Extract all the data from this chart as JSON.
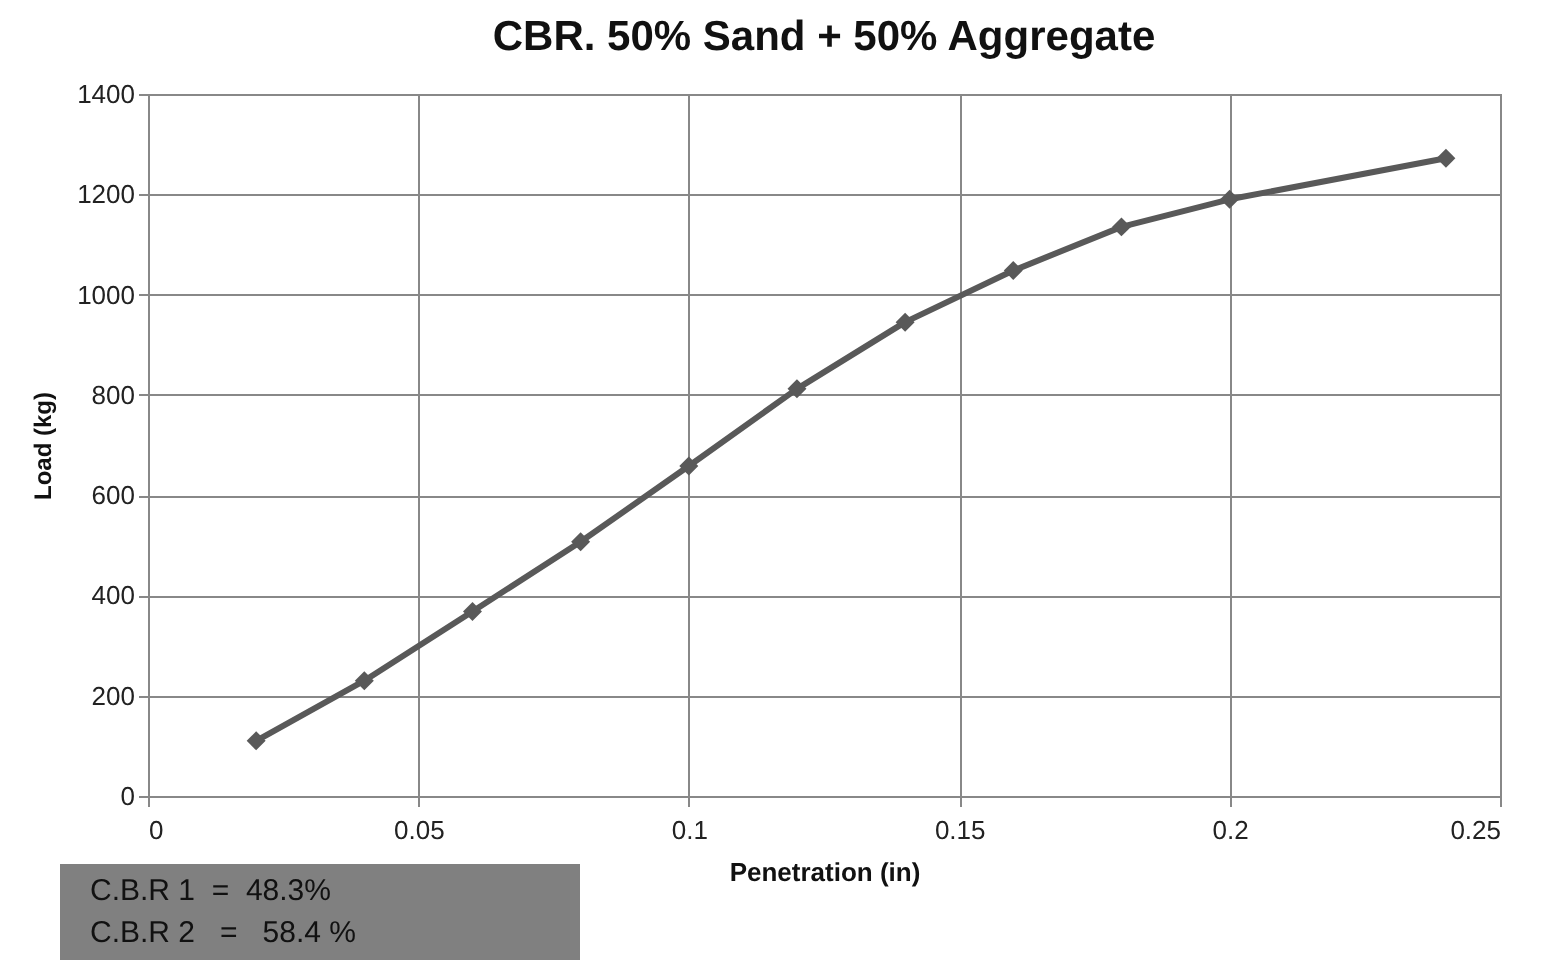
{
  "chart_data": {
    "type": "line",
    "title": "CBR. 50% Sand + 50%  Aggregate",
    "xlabel": "Penetration (in)",
    "ylabel": "Load (kg)",
    "x": [
      0.02,
      0.04,
      0.06,
      0.08,
      0.1,
      0.12,
      0.14,
      0.16,
      0.18,
      0.2,
      0.24
    ],
    "series": [
      {
        "color": "#595959",
        "values": [
          110,
          230,
          368,
          507,
          658,
          812,
          945,
          1048,
          1135,
          1190,
          1272
        ]
      }
    ],
    "xlim": [
      0,
      0.25
    ],
    "xticks": [
      0,
      0.05,
      0.1,
      0.15,
      0.2,
      0.25
    ],
    "ylim": [
      0,
      1400
    ],
    "yticks": [
      0,
      200,
      400,
      600,
      800,
      1000,
      1200,
      1400
    ],
    "grid": true,
    "marker": "diamond",
    "line_style": "solid",
    "legend": false,
    "annotations": [
      "C.B.R 1  =  48.3%",
      "C.B.R 2   =   58.4 %"
    ]
  }
}
